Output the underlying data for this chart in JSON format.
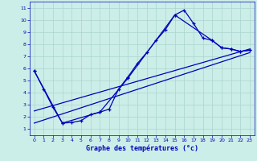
{
  "xlabel": "Graphe des températures (°c)",
  "xlim": [
    -0.5,
    23.5
  ],
  "ylim": [
    0.5,
    11.5
  ],
  "xticks": [
    0,
    1,
    2,
    3,
    4,
    5,
    6,
    7,
    8,
    9,
    10,
    11,
    12,
    13,
    14,
    15,
    16,
    17,
    18,
    19,
    20,
    21,
    22,
    23
  ],
  "yticks": [
    1,
    2,
    3,
    4,
    5,
    6,
    7,
    8,
    9,
    10,
    11
  ],
  "background_color": "#cceee8",
  "grid_color": "#aad4ce",
  "line_color": "#0000bb",
  "xlabel_color": "#0000bb",
  "tick_color": "#0000bb",
  "curve1_x": [
    0,
    1,
    2,
    3,
    4,
    5,
    6,
    7,
    8,
    9,
    10,
    11,
    12,
    13,
    14,
    15,
    16,
    17,
    18,
    19,
    20,
    21,
    22,
    23
  ],
  "curve1_y": [
    5.8,
    4.3,
    2.8,
    1.5,
    1.55,
    1.7,
    2.2,
    2.4,
    2.65,
    4.3,
    5.3,
    6.4,
    7.3,
    8.3,
    9.2,
    10.4,
    10.8,
    9.7,
    8.5,
    8.3,
    7.7,
    7.6,
    7.4,
    7.5
  ],
  "line2_x": [
    0,
    3,
    7,
    10,
    15,
    19,
    20,
    21,
    22,
    23
  ],
  "line2_y": [
    5.8,
    1.5,
    2.4,
    5.2,
    10.4,
    8.3,
    7.7,
    7.6,
    7.4,
    7.5
  ],
  "line3_x": [
    0,
    23
  ],
  "line3_y": [
    1.5,
    7.3
  ],
  "line4_x": [
    0,
    23
  ],
  "line4_y": [
    2.5,
    7.6
  ]
}
